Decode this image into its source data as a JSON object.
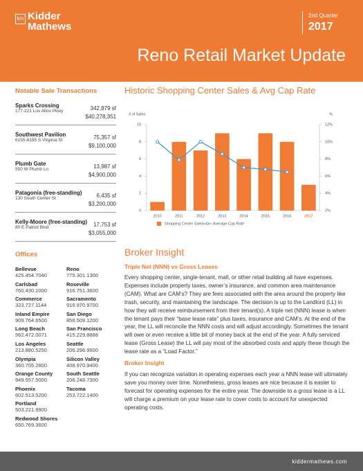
{
  "header": {
    "logo_mark": "km",
    "logo_line1": "Kidder",
    "logo_line2": "Mathews",
    "quarter": "2nd Quarter",
    "year": "2017",
    "title": "Reno Retail Market Update"
  },
  "transactions": {
    "heading": "Notable Sale Transactions",
    "items": [
      {
        "name": "Sparks Crossing",
        "address": "177-221 Los Altos Pkwy",
        "size": "342,879 sf",
        "price": "$40,278,351"
      },
      {
        "name": "Southwest Pavilion",
        "address": "6155-8195 S Virginia St",
        "size": "75,357 sf",
        "price": "$9,100,000"
      },
      {
        "name": "Plumb Gate",
        "address": "550 W Plumb Ln",
        "size": "13,987 sf",
        "price": "$4,900,000"
      },
      {
        "name": "Patagonia (free-standing)",
        "address": "130 South Center St",
        "size": "6,435 sf",
        "price": "$3,200,000"
      },
      {
        "name": "Kelly-Moore (free-standing)",
        "address": "80 E Patriot Blvd",
        "size": "17,753 sf",
        "price": "$3,055,000"
      }
    ]
  },
  "offices": {
    "heading": "Offices",
    "left": [
      {
        "city": "Bellevue",
        "phone": "425.454.7040"
      },
      {
        "city": "Carlsbad",
        "phone": "760.430.1000"
      },
      {
        "city": "Commerce",
        "phone": "323.727.1144"
      },
      {
        "city": "Inland Empire",
        "phone": "909.764.6500"
      },
      {
        "city": "Long Beach",
        "phone": "562.472.0071"
      },
      {
        "city": "Los Angeles",
        "phone": "213.880.5250"
      },
      {
        "city": "Olympia",
        "phone": "360.705.2800"
      },
      {
        "city": "Orange County",
        "phone": "949.557.5000"
      },
      {
        "city": "Phoenix",
        "phone": "602.513.5200"
      },
      {
        "city": "Portland",
        "phone": "503.221.9900"
      },
      {
        "city": "Redwood Shores",
        "phone": "650.769.3600"
      }
    ],
    "right": [
      {
        "city": "Reno",
        "phone": "775.301.1300"
      },
      {
        "city": "Roseville",
        "phone": "916.751.3600"
      },
      {
        "city": "Sacramento",
        "phone": "916.970.9700"
      },
      {
        "city": "San Diego",
        "phone": "858.509.1200"
      },
      {
        "city": "San Francisco",
        "phone": "415.229.8888"
      },
      {
        "city": "Seattle",
        "phone": "206.296.9600"
      },
      {
        "city": "Silicon Valley",
        "phone": "408.970.9400"
      },
      {
        "city": "South Seattle",
        "phone": "206.248.7300"
      },
      {
        "city": "Tacoma",
        "phone": "253.722.1400"
      }
    ]
  },
  "chart_data": {
    "type": "bar",
    "title": "Historic Shopping Center Sales & Avg Cap Rate",
    "y_label": "# of Sales",
    "y2_label": "%",
    "categories": [
      "2010",
      "2011",
      "2012",
      "2013",
      "2014",
      "2015",
      "2016",
      "2017"
    ],
    "series": [
      {
        "name": "Shopping Center Sales",
        "color": "#f07b35",
        "values": [
          1,
          8,
          7,
          9,
          6,
          9,
          8,
          3
        ]
      },
      {
        "name": "Average Cap Rate",
        "color": "#3a9ad6",
        "type": "line",
        "axis": "y2",
        "values": [
          10,
          7.9,
          10,
          8.6,
          7,
          6.8,
          6.5,
          null
        ]
      }
    ],
    "ylim": [
      0,
      10
    ],
    "yticks": [
      0,
      2,
      4,
      6,
      8,
      10
    ],
    "y2lim": [
      2,
      12
    ],
    "y2ticks": [
      {
        "value": 2,
        "label": "2%"
      },
      {
        "value": 4,
        "label": "4%"
      },
      {
        "value": 6,
        "label": "6%"
      },
      {
        "value": 8,
        "label": "8%"
      },
      {
        "value": 10,
        "label": "10%"
      },
      {
        "value": 12,
        "label": "12%"
      }
    ],
    "highlight_category": "2017",
    "highlight_color": "#f07b35",
    "grid": false
  },
  "article": {
    "heading": "Broker Insight",
    "sub1": "Triple Net (NNN) vs Gross Leases",
    "p1": "Every shopping center, single-tenant, mall, or other retail building all have expenses. Expenses include property taxes, owner’s insurance, and common area maintenance (CAM). What are CAM’s? They are fees associated with the area around the property like trash, security, and maintaining the landscape. The decision is up to the Landlord (LL) in how they will receive reimbursement from their tenant(s). A triple net (NNN) lease is when the tenant pays their “base lease rate” plus taxes, insurance and CAM’s. At the end of the year, the LL will reconcile the NNN costs and will adjust accordingly. Sometimes the tenant will owe or even receive a little bit of money back at the end of the year. A fully serviced lease (Gross Lease) the LL will pay most of the absorbed costs and apply these though the lease rate as a “Load Factor.”",
    "sub2": "Broker Insight",
    "p2": "If you can recognize variation in operating expenses each year a NNN lease will ultimately save you money over time. Nonetheless, gross leases are nice because it is easier to forecast for operating expenses for the entire year. The downside to a gross lease is a LL will charge a premium on your lease rate to cover costs to account for unexpected operating costs."
  },
  "footer": {
    "url": "kiddermathews.com"
  }
}
